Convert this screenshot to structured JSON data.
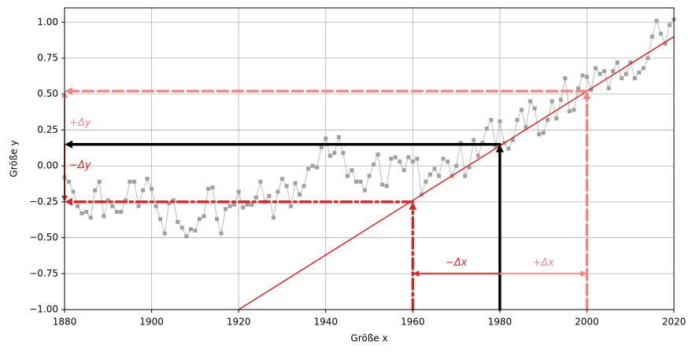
{
  "chart_data": {
    "type": "line",
    "xlabel": "Größe x",
    "ylabel": "Größe y",
    "xlim": [
      1880,
      2020
    ],
    "ylim": [
      -1.0,
      1.1
    ],
    "xticks": [
      1880,
      1900,
      1920,
      1940,
      1960,
      1980,
      2000,
      2020
    ],
    "yticks": [
      {
        "value": -1.0,
        "label": "−1.00"
      },
      {
        "value": -0.75,
        "label": "−0.75"
      },
      {
        "value": -0.5,
        "label": "−0.50"
      },
      {
        "value": -0.25,
        "label": "−0.25"
      },
      {
        "value": 0,
        "label": "0.00"
      },
      {
        "value": 0.25,
        "label": "0.25"
      },
      {
        "value": 0.5,
        "label": "0.50"
      },
      {
        "value": 0.75,
        "label": "0.75"
      },
      {
        "value": 1.0,
        "label": "1.00"
      }
    ],
    "grid": true,
    "data_series": {
      "color": "#a0a0a0",
      "x": [
        1880,
        1881,
        1882,
        1883,
        1884,
        1885,
        1886,
        1887,
        1888,
        1889,
        1890,
        1891,
        1892,
        1893,
        1894,
        1895,
        1896,
        1897,
        1898,
        1899,
        1900,
        1901,
        1902,
        1903,
        1904,
        1905,
        1906,
        1907,
        1908,
        1909,
        1910,
        1911,
        1912,
        1913,
        1914,
        1915,
        1916,
        1917,
        1918,
        1919,
        1920,
        1921,
        1922,
        1923,
        1924,
        1925,
        1926,
        1927,
        1928,
        1929,
        1930,
        1931,
        1932,
        1933,
        1934,
        1935,
        1936,
        1937,
        1938,
        1939,
        1940,
        1941,
        1942,
        1943,
        1944,
        1945,
        1946,
        1947,
        1948,
        1949,
        1950,
        1951,
        1952,
        1953,
        1954,
        1955,
        1956,
        1957,
        1958,
        1959,
        1960,
        1961,
        1962,
        1963,
        1964,
        1965,
        1966,
        1967,
        1968,
        1969,
        1970,
        1971,
        1972,
        1973,
        1974,
        1975,
        1976,
        1977,
        1978,
        1979,
        1980,
        1981,
        1982,
        1983,
        1984,
        1985,
        1986,
        1987,
        1988,
        1989,
        1990,
        1991,
        1992,
        1993,
        1994,
        1995,
        1996,
        1997,
        1998,
        1999,
        2000,
        2001,
        2002,
        2003,
        2004,
        2005,
        2006,
        2007,
        2008,
        2009,
        2010,
        2011,
        2012,
        2013,
        2014,
        2015,
        2016,
        2017,
        2018,
        2019,
        2020
      ],
      "values": [
        -0.08,
        -0.11,
        -0.18,
        -0.28,
        -0.33,
        -0.32,
        -0.36,
        -0.17,
        -0.11,
        -0.35,
        -0.24,
        -0.28,
        -0.32,
        -0.32,
        -0.24,
        -0.11,
        -0.11,
        -0.28,
        -0.17,
        -0.09,
        -0.16,
        -0.28,
        -0.37,
        -0.47,
        -0.26,
        -0.24,
        -0.39,
        -0.43,
        -0.49,
        -0.44,
        -0.45,
        -0.37,
        -0.35,
        -0.16,
        -0.15,
        -0.37,
        -0.47,
        -0.3,
        -0.28,
        -0.27,
        -0.18,
        -0.29,
        -0.27,
        -0.27,
        -0.22,
        -0.11,
        -0.25,
        -0.21,
        -0.36,
        -0.18,
        -0.09,
        -0.14,
        -0.28,
        -0.12,
        -0.2,
        -0.14,
        -0.02,
        0.0,
        -0.01,
        0.13,
        0.19,
        0.07,
        0.09,
        0.2,
        0.09,
        -0.07,
        -0.03,
        -0.11,
        -0.11,
        -0.17,
        -0.07,
        0.01,
        0.08,
        -0.13,
        -0.14,
        0.05,
        0.06,
        0.03,
        -0.03,
        0.06,
        0.03,
        0.05,
        -0.2,
        -0.11,
        -0.06,
        -0.02,
        -0.07,
        0.05,
        0.03,
        -0.07,
        0.0,
        0.16,
        -0.07,
        -0.01,
        0.18,
        0.07,
        0.16,
        0.26,
        0.32,
        0.14,
        0.31,
        0.16,
        0.12,
        0.18,
        0.32,
        0.39,
        0.27,
        0.45,
        0.4,
        0.22,
        0.23,
        0.32,
        0.45,
        0.33,
        0.46,
        0.61,
        0.38,
        0.39,
        0.54,
        0.63,
        0.62,
        0.53,
        0.68,
        0.64,
        0.66,
        0.54,
        0.66,
        0.72,
        0.61,
        0.64,
        0.72,
        0.61,
        0.65,
        0.68,
        0.75,
        0.9,
        1.01,
        0.92,
        0.85,
        0.98,
        1.02
      ]
    },
    "fit_line": {
      "color": "#d62728",
      "x": [
        1920,
        2020
      ],
      "values": [
        -1.0,
        0.9
      ]
    },
    "arrows": [
      {
        "x": [
          1980,
          1980
        ],
        "y": [
          -1.0,
          0.15
        ],
        "color": "#000000",
        "style": "solid"
      },
      {
        "x": [
          1980,
          1880
        ],
        "y": [
          0.15,
          0.15
        ],
        "color": "#000000",
        "style": "solid"
      },
      {
        "x": [
          1960,
          1960
        ],
        "y": [
          -1.0,
          -0.25
        ],
        "color": "#d62728",
        "style": "dashdot"
      },
      {
        "x": [
          1960,
          1880
        ],
        "y": [
          -0.25,
          -0.25
        ],
        "color": "#d62728",
        "style": "dashdot"
      },
      {
        "x": [
          2000,
          2000
        ],
        "y": [
          -1.0,
          0.52
        ],
        "color": "#e88a8a",
        "style": "dashed"
      },
      {
        "x": [
          2000,
          1880
        ],
        "y": [
          0.52,
          0.52
        ],
        "color": "#e88a8a",
        "style": "dashed"
      },
      {
        "x": [
          1980,
          1960
        ],
        "y": [
          -0.75,
          -0.75
        ],
        "color": "#d62728",
        "style": "thin",
        "label": "−Δx"
      },
      {
        "x": [
          1980,
          2000
        ],
        "y": [
          -0.75,
          -0.75
        ],
        "color": "#e88a8a",
        "style": "thin",
        "label": "+Δx"
      },
      {
        "x": [
          1880,
          1880
        ],
        "y": [
          0.15,
          0.52
        ],
        "color": "#e88a8a",
        "style": "thin",
        "label": "+Δy"
      },
      {
        "x": [
          1880,
          1880
        ],
        "y": [
          0.15,
          -0.25
        ],
        "color": "#d62728",
        "style": "thin",
        "label": "−Δy"
      }
    ]
  }
}
